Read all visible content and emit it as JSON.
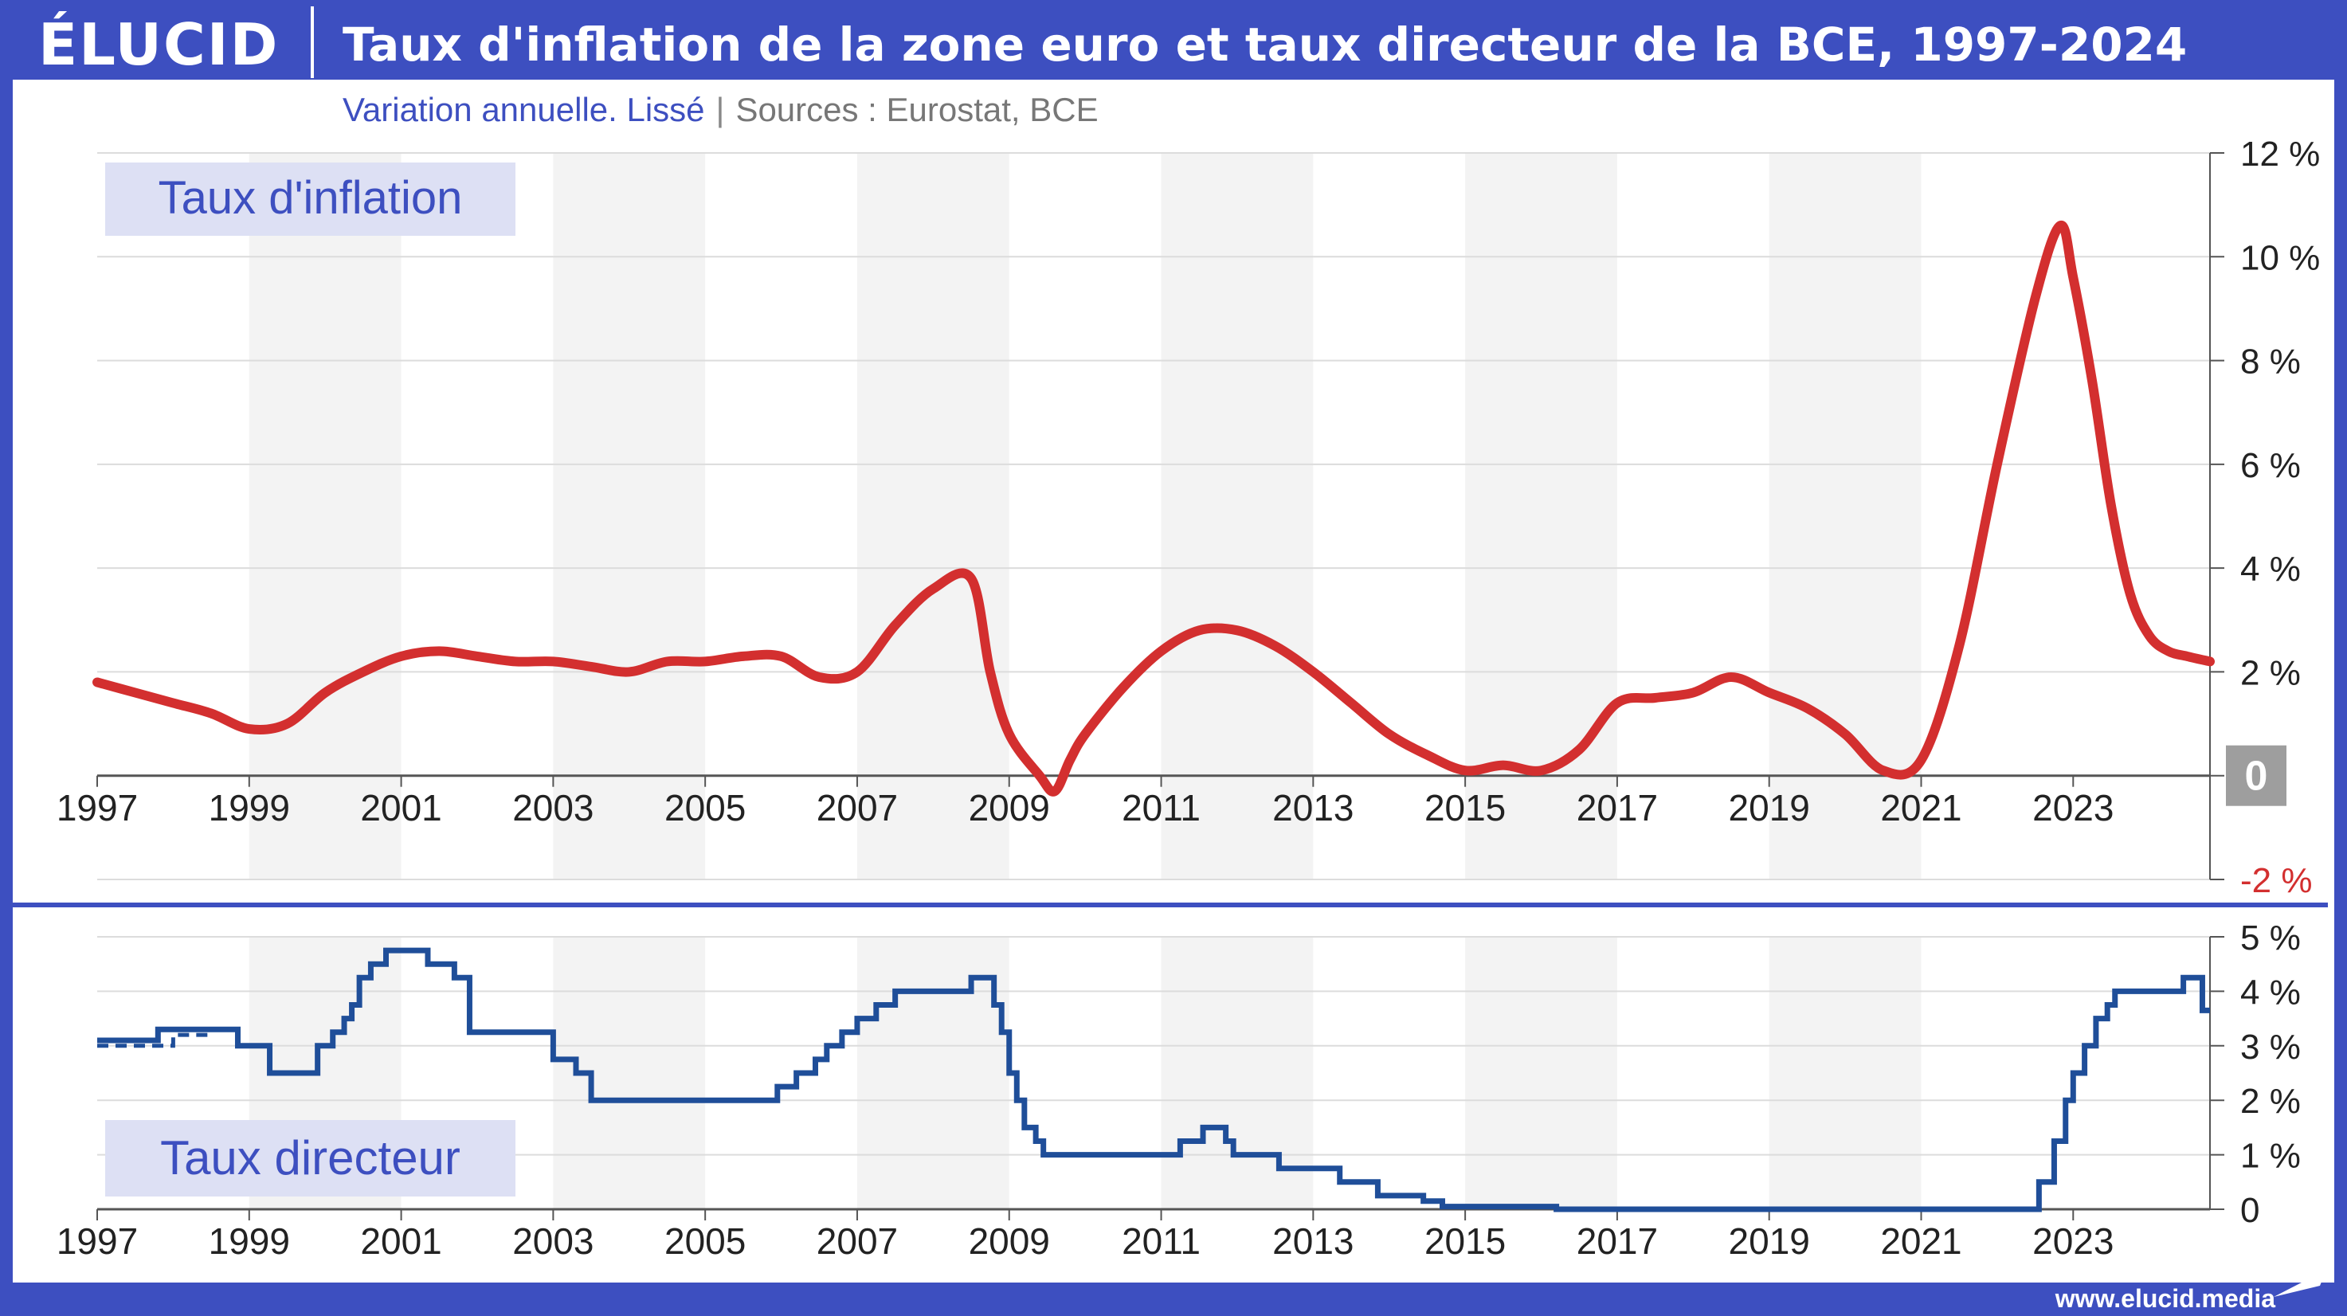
{
  "brand": {
    "logo": "ÉLUCID",
    "footer_url": "www.elucid.media"
  },
  "header": {
    "title": "Taux d'inflation de la zone euro et taux directeur de la BCE, 1997-2024",
    "subtitle": "Variation annuelle. Lissé",
    "sources": "Sources : Eurostat, BCE"
  },
  "colors": {
    "brand": "#3d4fc0",
    "inflation": "#d32f2f",
    "policy": "#1f4e99",
    "zero_badge": "#9e9e9e"
  },
  "chart_data": [
    {
      "type": "line",
      "title": "Taux d'inflation",
      "xlabel": "",
      "ylabel": "",
      "xlim": [
        1997,
        2024.8
      ],
      "ylim": [
        -2,
        12
      ],
      "x_ticks": [
        1997,
        1999,
        2001,
        2003,
        2005,
        2007,
        2009,
        2011,
        2013,
        2015,
        2017,
        2019,
        2021,
        2023
      ],
      "y_ticks": [
        -2,
        0,
        2,
        4,
        6,
        8,
        10,
        12
      ],
      "y_tick_labels": [
        "-2 %",
        "0",
        "2 %",
        "4 %",
        "6 %",
        "8 %",
        "10 %",
        "12 %"
      ],
      "grid": true,
      "series": [
        {
          "name": "Taux d'inflation",
          "x": [
            1997,
            1997.5,
            1998,
            1998.5,
            1999,
            1999.5,
            2000,
            2000.5,
            2001,
            2001.5,
            2002,
            2002.5,
            2003,
            2003.5,
            2004,
            2004.5,
            2005,
            2005.5,
            2006,
            2006.5,
            2007,
            2007.5,
            2008,
            2008.5,
            2008.75,
            2009,
            2009.4,
            2009.6,
            2009.8,
            2010,
            2010.5,
            2011,
            2011.5,
            2012,
            2012.5,
            2013,
            2013.5,
            2014,
            2014.5,
            2015,
            2015.5,
            2016,
            2016.5,
            2017,
            2017.5,
            2018,
            2018.5,
            2019,
            2019.5,
            2020,
            2020.5,
            2021,
            2021.5,
            2022,
            2022.5,
            2022.83,
            2023,
            2023.25,
            2023.5,
            2023.75,
            2024,
            2024.25,
            2024.5,
            2024.8
          ],
          "values": [
            1.8,
            1.6,
            1.4,
            1.2,
            0.9,
            1.0,
            1.6,
            2.0,
            2.3,
            2.4,
            2.3,
            2.2,
            2.2,
            2.1,
            2.0,
            2.2,
            2.2,
            2.3,
            2.3,
            1.9,
            2.0,
            2.9,
            3.6,
            3.8,
            2.0,
            0.8,
            0.0,
            -0.3,
            0.3,
            0.8,
            1.7,
            2.4,
            2.8,
            2.8,
            2.5,
            2.0,
            1.4,
            0.8,
            0.4,
            0.1,
            0.2,
            0.1,
            0.5,
            1.4,
            1.5,
            1.6,
            1.9,
            1.6,
            1.3,
            0.8,
            0.1,
            0.3,
            2.5,
            6.0,
            9.2,
            10.6,
            9.6,
            7.6,
            5.2,
            3.5,
            2.7,
            2.4,
            2.3,
            2.2
          ]
        }
      ]
    },
    {
      "type": "line",
      "title": "Taux directeur",
      "xlabel": "",
      "ylabel": "",
      "xlim": [
        1997,
        2024.8
      ],
      "ylim": [
        0,
        5
      ],
      "x_ticks": [
        1997,
        1999,
        2001,
        2003,
        2005,
        2007,
        2009,
        2011,
        2013,
        2015,
        2017,
        2019,
        2021,
        2023
      ],
      "y_ticks": [
        0,
        1,
        2,
        3,
        4,
        5
      ],
      "y_tick_labels": [
        "0",
        "1 %",
        "2 %",
        "3 %",
        "4 %",
        "5 %"
      ],
      "grid": true,
      "series": [
        {
          "name": "Taux directeur",
          "step": true,
          "x": [
            1997,
            1997.8,
            1998.85,
            1999.27,
            1999.9,
            2000.1,
            2000.25,
            2000.35,
            2000.45,
            2000.6,
            2000.8,
            2001.35,
            2001.7,
            2001.9,
            2003.0,
            2003.3,
            2003.5,
            2005.95,
            2006.2,
            2006.45,
            2006.6,
            2006.8,
            2007.0,
            2007.25,
            2007.5,
            2008.5,
            2008.8,
            2008.9,
            2009.0,
            2009.1,
            2009.2,
            2009.35,
            2009.45,
            2011.25,
            2011.55,
            2011.85,
            2011.95,
            2012.55,
            2013.35,
            2013.85,
            2014.45,
            2014.7,
            2016.2,
            2022.55,
            2022.75,
            2022.9,
            2023.0,
            2023.15,
            2023.3,
            2023.45,
            2023.55,
            2024.45,
            2024.7
          ],
          "values": [
            3.1,
            3.3,
            3.0,
            2.5,
            3.0,
            3.25,
            3.5,
            3.75,
            4.25,
            4.5,
            4.75,
            4.5,
            4.25,
            3.25,
            2.75,
            2.5,
            2.0,
            2.25,
            2.5,
            2.75,
            3.0,
            3.25,
            3.5,
            3.75,
            4.0,
            4.25,
            3.75,
            3.25,
            2.5,
            2.0,
            1.5,
            1.25,
            1.0,
            1.25,
            1.5,
            1.25,
            1.0,
            0.75,
            0.5,
            0.25,
            0.15,
            0.05,
            0.0,
            0.5,
            1.25,
            2.0,
            2.5,
            3.0,
            3.5,
            3.75,
            4.0,
            4.25,
            3.65
          ]
        },
        {
          "name": "Taux directeur (avant 1999)",
          "dashed": true,
          "x": [
            1997,
            1997.5,
            1998.0,
            1998.5,
            1998.85
          ],
          "values": [
            3.0,
            3.0,
            3.2,
            3.3,
            3.3
          ]
        }
      ]
    }
  ]
}
